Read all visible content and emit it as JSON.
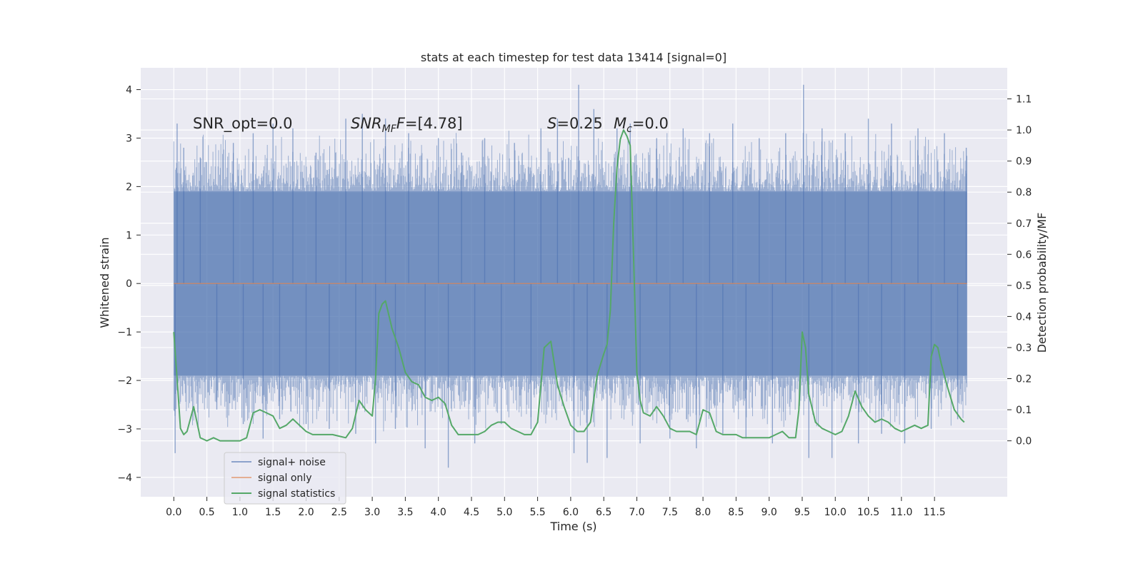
{
  "chart_data": {
    "type": "line",
    "title": "stats at each timestep for test data 13414 [signal=0]",
    "xlabel": "Time (s)",
    "ylabel_left": "Whitened strain",
    "ylabel_right": "Detection probability/MF",
    "xlim": [
      -0.5,
      12.6
    ],
    "ylim_left": [
      -4.4,
      4.45
    ],
    "ylim_right": [
      -0.18,
      1.2
    ],
    "xticks": [
      0.0,
      0.5,
      1.0,
      1.5,
      2.0,
      2.5,
      3.0,
      3.5,
      4.0,
      4.5,
      5.0,
      5.5,
      6.0,
      6.5,
      7.0,
      7.5,
      8.0,
      8.5,
      9.0,
      9.5,
      10.0,
      10.5,
      11.0,
      11.5
    ],
    "xtick_labels": [
      "0.0",
      "0.5",
      "1.0",
      "1.5",
      "2.0",
      "2.5",
      "3.0",
      "3.5",
      "4.0",
      "4.5",
      "5.0",
      "5.5",
      "6.0",
      "6.5",
      "7.0",
      "7.5",
      "8.0",
      "8.5",
      "9.0",
      "9.5",
      "10.0",
      "10.5",
      "11.0",
      "11.5"
    ],
    "yticks_left": [
      -4,
      -3,
      -2,
      -1,
      0,
      1,
      2,
      3,
      4
    ],
    "ytick_labels_left": [
      "−4",
      "−3",
      "−2",
      "−1",
      "0",
      "1",
      "2",
      "3",
      "4"
    ],
    "yticks_right": [
      0.0,
      0.1,
      0.2,
      0.3,
      0.4,
      0.5,
      0.6,
      0.7,
      0.8,
      0.9,
      1.0,
      1.1
    ],
    "ytick_labels_right": [
      "0.0",
      "0.1",
      "0.2",
      "0.3",
      "0.4",
      "0.5",
      "0.6",
      "0.7",
      "0.8",
      "0.9",
      "1.0",
      "1.1"
    ],
    "grid": true,
    "legend_position": "lower-left",
    "background": "#eaeaf2",
    "series": [
      {
        "name": "signal+ noise",
        "axis": "left",
        "color": "#4c72b0",
        "opacity": 0.5,
        "x_range": [
          0.0,
          11.99
        ],
        "band": [
          -1.9,
          1.9
        ],
        "spike_peaks": [
          [
            0.02,
            -3.5
          ],
          [
            0.05,
            3.3
          ],
          [
            0.15,
            2.8
          ],
          [
            0.4,
            2.6
          ],
          [
            0.65,
            -2.6
          ],
          [
            0.9,
            2.9
          ],
          [
            1.05,
            -2.9
          ],
          [
            1.2,
            3.1
          ],
          [
            1.35,
            -3.2
          ],
          [
            1.5,
            3.3
          ],
          [
            1.6,
            -2.8
          ],
          [
            1.8,
            3.2
          ],
          [
            2.0,
            -2.9
          ],
          [
            2.15,
            2.7
          ],
          [
            2.35,
            -3.0
          ],
          [
            2.6,
            3.4
          ],
          [
            2.75,
            -3.1
          ],
          [
            2.85,
            3.5
          ],
          [
            3.05,
            -3.3
          ],
          [
            3.2,
            3.4
          ],
          [
            3.35,
            -3.0
          ],
          [
            3.55,
            3.1
          ],
          [
            3.8,
            -3.4
          ],
          [
            4.0,
            3.0
          ],
          [
            4.15,
            -3.8
          ],
          [
            4.35,
            2.7
          ],
          [
            4.55,
            -3.3
          ],
          [
            4.7,
            3.0
          ],
          [
            4.95,
            -2.9
          ],
          [
            5.15,
            2.9
          ],
          [
            5.4,
            -3.0
          ],
          [
            5.55,
            3.2
          ],
          [
            5.8,
            3.4
          ],
          [
            6.05,
            -3.5
          ],
          [
            6.12,
            4.1
          ],
          [
            6.25,
            -3.7
          ],
          [
            6.35,
            3.6
          ],
          [
            6.55,
            -3.6
          ],
          [
            6.7,
            3.2
          ],
          [
            6.9,
            3.3
          ],
          [
            7.05,
            -3.3
          ],
          [
            7.3,
            3.0
          ],
          [
            7.5,
            -3.2
          ],
          [
            7.7,
            3.2
          ],
          [
            7.9,
            -3.4
          ],
          [
            8.1,
            3.1
          ],
          [
            8.3,
            -3.1
          ],
          [
            8.45,
            3.3
          ],
          [
            8.65,
            -3.2
          ],
          [
            8.85,
            3.0
          ],
          [
            9.05,
            -3.3
          ],
          [
            9.25,
            3.1
          ],
          [
            9.52,
            4.1
          ],
          [
            9.6,
            -3.6
          ],
          [
            9.8,
            3.2
          ],
          [
            9.95,
            -3.6
          ],
          [
            10.15,
            3.1
          ],
          [
            10.35,
            -3.3
          ],
          [
            10.5,
            3.4
          ],
          [
            10.7,
            -3.1
          ],
          [
            10.85,
            3.3
          ],
          [
            11.05,
            -3.3
          ],
          [
            11.25,
            3.2
          ],
          [
            11.45,
            -3.0
          ],
          [
            11.65,
            3.1
          ],
          [
            11.85,
            -2.8
          ],
          [
            11.98,
            2.8
          ]
        ]
      },
      {
        "name": "signal only",
        "axis": "left",
        "color": "#dd8452",
        "x": [
          0.0,
          11.99
        ],
        "y": [
          0.0,
          0.0
        ]
      },
      {
        "name": "signal statistics",
        "axis": "right",
        "color": "#55a868",
        "x": [
          0.0,
          0.05,
          0.1,
          0.15,
          0.2,
          0.3,
          0.4,
          0.5,
          0.6,
          0.7,
          0.8,
          0.9,
          1.0,
          1.1,
          1.2,
          1.3,
          1.4,
          1.5,
          1.6,
          1.7,
          1.8,
          1.9,
          2.0,
          2.1,
          2.2,
          2.3,
          2.4,
          2.5,
          2.6,
          2.7,
          2.8,
          2.9,
          3.0,
          3.05,
          3.1,
          3.15,
          3.2,
          3.3,
          3.4,
          3.5,
          3.6,
          3.7,
          3.8,
          3.9,
          4.0,
          4.1,
          4.2,
          4.3,
          4.4,
          4.5,
          4.6,
          4.7,
          4.8,
          4.9,
          5.0,
          5.1,
          5.2,
          5.3,
          5.4,
          5.5,
          5.6,
          5.65,
          5.7,
          5.8,
          5.9,
          6.0,
          6.1,
          6.2,
          6.3,
          6.4,
          6.5,
          6.55,
          6.6,
          6.65,
          6.7,
          6.75,
          6.8,
          6.85,
          6.9,
          6.95,
          7.0,
          7.05,
          7.1,
          7.2,
          7.3,
          7.4,
          7.5,
          7.6,
          7.7,
          7.8,
          7.9,
          8.0,
          8.1,
          8.2,
          8.3,
          8.4,
          8.5,
          8.6,
          8.7,
          8.8,
          8.9,
          9.0,
          9.1,
          9.2,
          9.3,
          9.4,
          9.45,
          9.5,
          9.55,
          9.6,
          9.7,
          9.8,
          9.9,
          10.0,
          10.1,
          10.2,
          10.3,
          10.4,
          10.5,
          10.6,
          10.7,
          10.8,
          10.9,
          11.0,
          11.1,
          11.2,
          11.3,
          11.4,
          11.45,
          11.5,
          11.55,
          11.6,
          11.7,
          11.8,
          11.9,
          11.95
        ],
        "y": [
          0.35,
          0.2,
          0.04,
          0.02,
          0.03,
          0.11,
          0.01,
          0.0,
          0.01,
          0.0,
          0.0,
          0.0,
          0.0,
          0.01,
          0.09,
          0.1,
          0.09,
          0.08,
          0.04,
          0.05,
          0.07,
          0.05,
          0.03,
          0.02,
          0.02,
          0.02,
          0.02,
          0.015,
          0.01,
          0.04,
          0.13,
          0.1,
          0.08,
          0.2,
          0.41,
          0.44,
          0.45,
          0.36,
          0.3,
          0.22,
          0.19,
          0.18,
          0.14,
          0.13,
          0.14,
          0.12,
          0.05,
          0.02,
          0.02,
          0.02,
          0.02,
          0.03,
          0.05,
          0.06,
          0.06,
          0.04,
          0.03,
          0.02,
          0.02,
          0.06,
          0.3,
          0.31,
          0.32,
          0.18,
          0.11,
          0.05,
          0.03,
          0.03,
          0.06,
          0.21,
          0.28,
          0.31,
          0.42,
          0.7,
          0.88,
          0.97,
          1.0,
          0.98,
          0.95,
          0.6,
          0.22,
          0.13,
          0.09,
          0.08,
          0.11,
          0.08,
          0.04,
          0.03,
          0.03,
          0.03,
          0.02,
          0.1,
          0.09,
          0.03,
          0.02,
          0.02,
          0.02,
          0.01,
          0.01,
          0.01,
          0.01,
          0.01,
          0.02,
          0.03,
          0.01,
          0.01,
          0.1,
          0.35,
          0.3,
          0.15,
          0.06,
          0.04,
          0.03,
          0.02,
          0.03,
          0.08,
          0.16,
          0.11,
          0.08,
          0.06,
          0.07,
          0.06,
          0.04,
          0.03,
          0.04,
          0.05,
          0.04,
          0.05,
          0.27,
          0.31,
          0.3,
          0.25,
          0.17,
          0.1,
          0.07,
          0.06
        ]
      }
    ],
    "annotations": [
      {
        "text": "SNR_opt=0.0",
        "italic": false
      },
      {
        "text": "SNR",
        "sub": "MF",
        "suffix": "=[4.78]",
        "italic": true
      },
      {
        "text": "S",
        "suffix": "=0.25",
        "italic": true
      },
      {
        "text": "M",
        "sub": "c",
        "suffix": "=0.0",
        "italic": true
      }
    ]
  }
}
